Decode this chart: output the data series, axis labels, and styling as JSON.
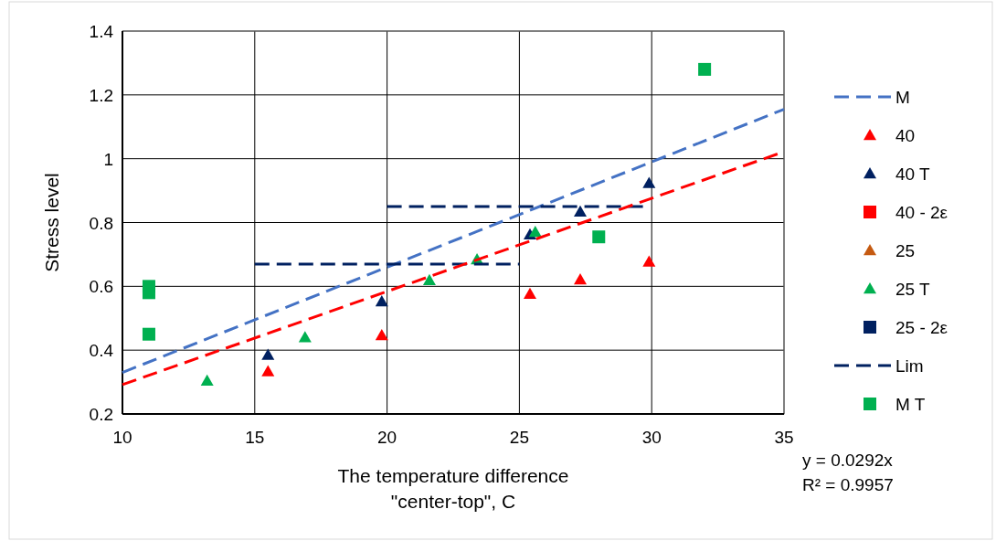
{
  "chart_data": {
    "type": "scatter",
    "xlabel": "The temperature difference \"center-top\", C",
    "ylabel": "Stress level",
    "xlim": [
      10,
      35
    ],
    "ylim": [
      0.2,
      1.4
    ],
    "xticks": [
      10,
      15,
      20,
      25,
      30,
      35
    ],
    "yticks": [
      {
        "value": 0.2,
        "label": "0.2"
      },
      {
        "value": 0.4,
        "label": "0.4"
      },
      {
        "value": 0.6,
        "label": "0.6"
      },
      {
        "value": 0.8,
        "label": "0.8"
      },
      {
        "value": 1,
        "label": "1"
      },
      {
        "value": 1.2,
        "label": "1.2"
      },
      {
        "value": 1.4,
        "label": "1.4"
      }
    ],
    "grid": true,
    "legend": "right",
    "annotations": [
      "y = 0.0292x",
      "R² = 0.9957"
    ],
    "series": [
      {
        "name": "M",
        "type": "line",
        "line_style": "dashed",
        "marker": "none",
        "color": "#4472c4",
        "x": [
          10,
          35
        ],
        "values": [
          0.33,
          1.155
        ]
      },
      {
        "name": "40",
        "marker": "triangle",
        "color": "#ff0000",
        "x": [
          15.5,
          19.8,
          25.4,
          27.3,
          29.9
        ],
        "values": [
          0.333,
          0.446,
          0.576,
          0.621,
          0.677
        ]
      },
      {
        "name": "40 T",
        "marker": "triangle",
        "color": "#002060",
        "x": [
          15.5,
          19.8,
          25.4,
          27.3,
          29.9
        ],
        "values": [
          0.385,
          0.552,
          0.762,
          0.834,
          0.923
        ]
      },
      {
        "name": "40  - 2ε",
        "marker": "square",
        "color": "#ff0000"
      },
      {
        "name": "25",
        "marker": "triangle",
        "color": "#c55a11"
      },
      {
        "name": "25 T",
        "marker": "triangle",
        "color": "#00b050",
        "x": [
          13.2,
          16.9,
          21.6,
          23.4,
          25.6
        ],
        "values": [
          0.304,
          0.44,
          0.619,
          0.684,
          0.77
        ]
      },
      {
        "name": "25 - 2ε",
        "marker": "square",
        "color": "#002060"
      },
      {
        "name": "Lim",
        "type": "line",
        "line_style": "dashed",
        "marker": "none",
        "color": "#002060",
        "x": [
          15,
          25,
          null,
          20,
          29.8
        ],
        "values": [
          0.67,
          0.67,
          null,
          0.85,
          0.85
        ]
      },
      {
        "name": "M T",
        "marker": "square",
        "color": "#00b050",
        "x": [
          11,
          11,
          11,
          28,
          32
        ],
        "values": [
          0.6,
          0.58,
          0.45,
          0.755,
          1.28
        ]
      },
      {
        "type": "line",
        "line_style": "dashed",
        "marker": "none",
        "color": "#ff0000",
        "x": [
          10,
          35
        ],
        "values": [
          0.292,
          1.022
        ]
      }
    ]
  }
}
